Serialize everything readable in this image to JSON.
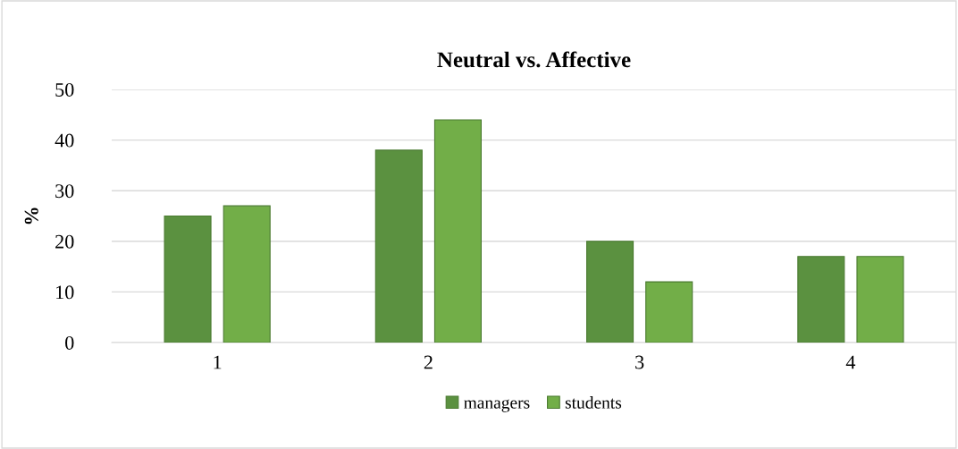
{
  "chart_data": {
    "type": "bar",
    "title": "Neutral vs. Affective",
    "ylabel": "%",
    "categories": [
      "1",
      "2",
      "3",
      "4"
    ],
    "series": [
      {
        "name": "managers",
        "color": "#5b9140",
        "values": [
          25,
          38,
          20,
          17
        ]
      },
      {
        "name": "students",
        "color": "#72ae48",
        "values": [
          27,
          44,
          12,
          17
        ]
      }
    ],
    "ylim": [
      0,
      50
    ],
    "yticks": [
      0,
      10,
      20,
      30,
      40,
      50
    ],
    "grid": "y",
    "legend": "bottom"
  }
}
